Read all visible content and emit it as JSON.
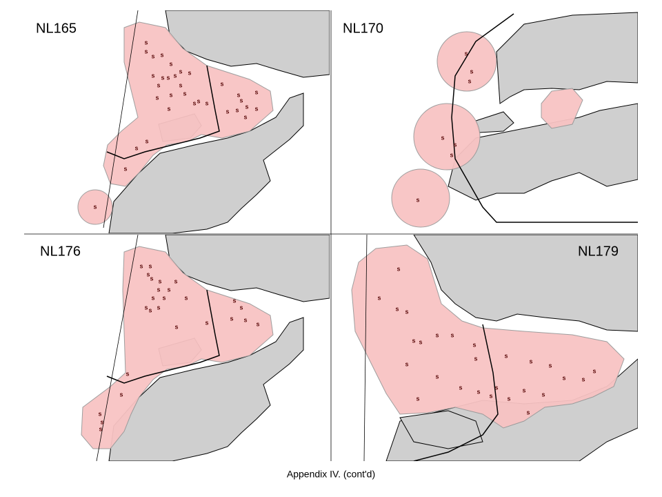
{
  "panels": [
    {
      "label": "NL165"
    },
    {
      "label": "NL170"
    },
    {
      "label": "NL176"
    },
    {
      "label": "NL179"
    }
  ],
  "marker_symbol": "s",
  "caption": "Appendix IV.  (cont'd)"
}
